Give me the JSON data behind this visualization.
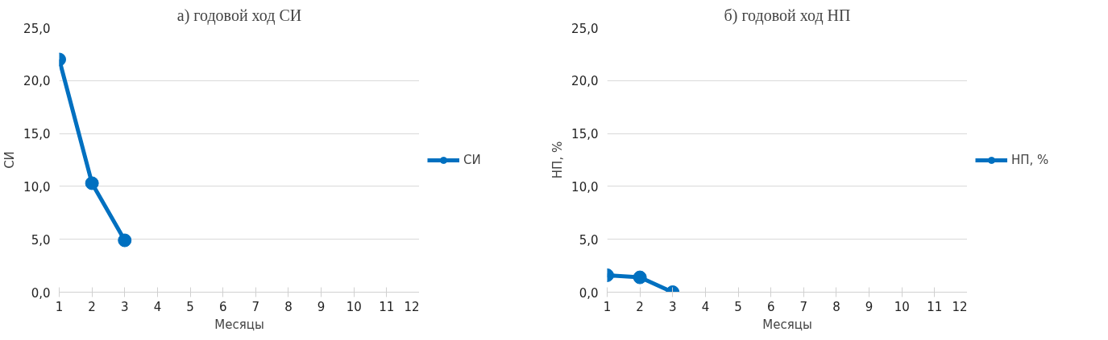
{
  "chart_data": [
    {
      "type": "line",
      "title": "а) годовой ход СИ",
      "xlabel": "Месяцы",
      "ylabel": "СИ",
      "x": [
        1,
        2,
        3
      ],
      "series": [
        {
          "name": "СИ",
          "color": "#0070c0",
          "values": [
            22.0,
            10.3,
            4.9
          ]
        }
      ],
      "xlim": [
        1,
        12
      ],
      "xticks": [
        1,
        2,
        3,
        4,
        5,
        6,
        7,
        8,
        9,
        10,
        11,
        12
      ],
      "ylim": [
        0,
        25
      ],
      "yticks": [
        {
          "value": 0,
          "label": "0,0"
        },
        {
          "value": 5,
          "label": "5,0"
        },
        {
          "value": 10,
          "label": "10,0"
        },
        {
          "value": 15,
          "label": "15,0"
        },
        {
          "value": 20,
          "label": "20,0"
        },
        {
          "value": 25,
          "label": "25,0"
        }
      ],
      "grid": "y",
      "legend": "right",
      "marker": "circle",
      "line_style": "solid"
    },
    {
      "type": "line",
      "title": "б) годовой ход НП",
      "xlabel": "Месяцы",
      "ylabel": "НП, %",
      "x": [
        1,
        2,
        3
      ],
      "series": [
        {
          "name": "НП, %",
          "color": "#0070c0",
          "values": [
            1.6,
            1.4,
            0.0
          ]
        }
      ],
      "xlim": [
        1,
        12
      ],
      "xticks": [
        1,
        2,
        3,
        4,
        5,
        6,
        7,
        8,
        9,
        10,
        11,
        12
      ],
      "ylim": [
        0,
        25
      ],
      "yticks": [
        {
          "value": 0,
          "label": "0,0"
        },
        {
          "value": 5,
          "label": "5,0"
        },
        {
          "value": 10,
          "label": "10,0"
        },
        {
          "value": 15,
          "label": "15,0"
        },
        {
          "value": 20,
          "label": "20,0"
        },
        {
          "value": 25,
          "label": "25,0"
        }
      ],
      "grid": "y",
      "legend": "right",
      "marker": "circle",
      "line_style": "solid"
    }
  ]
}
